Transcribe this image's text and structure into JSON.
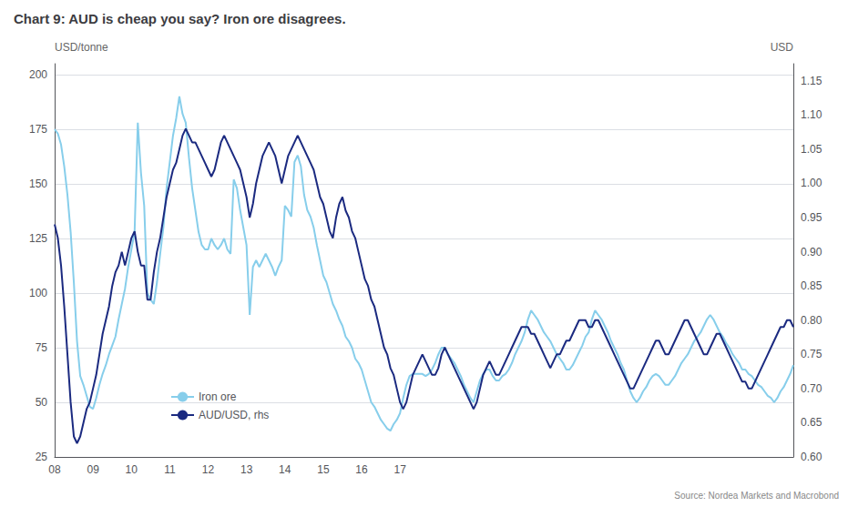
{
  "chart_data": {
    "type": "line",
    "title": "Chart 9: AUD is cheap you say? Iron ore disagrees.",
    "source": "Source: Nordea Markets and Macrobond",
    "ylabel": "USD/tonne",
    "y2label": "USD",
    "categories": [
      "08",
      null,
      null,
      null,
      null,
      null,
      null,
      null,
      null,
      null,
      null,
      null,
      "09",
      null,
      null,
      null,
      null,
      null,
      null,
      null,
      null,
      null,
      null,
      null,
      "10",
      null,
      null,
      null,
      null,
      null,
      null,
      null,
      null,
      null,
      null,
      null,
      "11",
      null,
      null,
      null,
      null,
      null,
      null,
      null,
      null,
      null,
      null,
      null,
      "12",
      null,
      null,
      null,
      null,
      null,
      null,
      null,
      null,
      null,
      null,
      null,
      "13",
      null,
      null,
      null,
      null,
      null,
      null,
      null,
      null,
      null,
      null,
      null,
      "14",
      null,
      null,
      null,
      null,
      null,
      null,
      null,
      null,
      null,
      null,
      null,
      "15",
      null,
      null,
      null,
      null,
      null,
      null,
      null,
      null,
      null,
      null,
      null,
      "16",
      null,
      null,
      null,
      null,
      null,
      null,
      null,
      null,
      null,
      null,
      null,
      "17",
      null,
      null,
      null,
      null,
      null,
      null,
      null,
      null,
      null,
      null,
      null,
      null,
      null,
      null,
      null,
      null,
      null,
      null,
      null,
      null,
      null,
      null,
      null,
      null,
      null,
      null,
      null,
      null,
      null,
      null,
      null,
      null,
      null,
      null,
      null,
      null,
      null,
      null,
      null,
      null,
      null,
      null,
      null,
      null,
      null,
      null,
      null,
      null,
      null,
      null,
      null,
      null,
      null,
      null,
      null,
      null,
      null,
      null,
      null,
      null,
      null,
      null,
      null,
      null,
      null,
      null,
      null,
      null,
      null,
      null,
      null,
      null,
      null,
      null,
      null,
      null,
      null,
      null,
      null,
      null,
      null,
      null,
      null,
      null,
      null,
      null,
      null,
      null,
      null,
      null,
      null,
      null,
      null,
      null,
      null,
      null,
      null,
      null,
      null,
      null,
      null,
      null,
      null,
      null,
      null,
      null,
      null,
      null,
      null,
      null,
      null,
      null,
      null,
      null,
      null,
      null,
      null,
      null,
      null,
      null,
      null,
      null,
      null
    ],
    "ylim": [
      25,
      205
    ],
    "yticks": [
      25,
      50,
      75,
      100,
      125,
      150,
      175,
      200
    ],
    "y2lim": [
      0.6,
      1.175
    ],
    "y2ticks": [
      {
        "value": 0.6,
        "label": "0.60"
      },
      {
        "value": 0.65,
        "label": "0.65"
      },
      {
        "value": 0.7,
        "label": "0.70"
      },
      {
        "value": 0.75,
        "label": "0.75"
      },
      {
        "value": 0.8,
        "label": "0.80"
      },
      {
        "value": 0.85,
        "label": "0.85"
      },
      {
        "value": 0.9,
        "label": "0.90"
      },
      {
        "value": 0.95,
        "label": "0.95"
      },
      {
        "value": 1.0,
        "label": "1.00"
      },
      {
        "value": 1.05,
        "label": "1.05"
      },
      {
        "value": 1.1,
        "label": "1.10"
      },
      {
        "value": 1.15,
        "label": "1.15"
      }
    ],
    "grid": true,
    "legend": "lower left",
    "series": [
      {
        "name": "Iron ore",
        "color": "#87CEEB",
        "values": [
          175,
          173,
          168,
          158,
          145,
          128,
          105,
          78,
          62,
          58,
          53,
          48,
          47,
          52,
          58,
          63,
          67,
          72,
          76,
          80,
          88,
          95,
          102,
          112,
          120,
          128,
          178,
          155,
          140,
          100,
          97,
          95,
          105,
          118,
          130,
          148,
          160,
          172,
          180,
          190,
          182,
          178,
          162,
          148,
          138,
          128,
          122,
          120,
          120,
          125,
          122,
          120,
          122,
          125,
          120,
          118,
          152,
          148,
          138,
          130,
          122,
          90,
          112,
          115,
          112,
          115,
          118,
          115,
          112,
          108,
          112,
          115,
          140,
          138,
          135,
          160,
          163,
          158,
          145,
          138,
          135,
          130,
          122,
          115,
          108,
          105,
          100,
          95,
          92,
          88,
          85,
          80,
          78,
          75,
          70,
          68,
          65,
          60,
          55,
          50,
          48,
          45,
          42,
          40,
          38,
          37,
          40,
          42,
          45,
          52,
          58,
          62,
          63,
          63,
          63,
          63,
          62,
          63,
          65,
          68,
          72,
          75,
          75,
          72,
          70,
          68,
          65,
          62,
          58,
          55,
          52,
          50,
          55,
          60,
          63,
          65,
          65,
          62,
          60,
          60,
          62,
          63,
          65,
          68,
          72,
          75,
          78,
          82,
          88,
          92,
          90,
          88,
          85,
          82,
          80,
          78,
          75,
          72,
          70,
          68,
          65,
          65,
          67,
          70,
          73,
          76,
          80,
          82,
          88,
          92,
          90,
          88,
          85,
          82,
          78,
          75,
          72,
          68,
          65,
          60,
          55,
          52,
          50,
          52,
          55,
          57,
          60,
          62,
          63,
          62,
          60,
          58,
          58,
          60,
          62,
          65,
          68,
          70,
          72,
          75,
          78,
          80,
          82,
          85,
          88,
          90,
          88,
          85,
          82,
          80,
          77,
          75,
          72,
          70,
          68,
          65,
          65,
          63,
          62,
          60,
          58,
          57,
          55,
          53,
          52,
          50,
          52,
          55,
          57,
          60,
          63,
          67
        ]
      },
      {
        "name": "AUD/USD, rhs",
        "color": "#1B2A80",
        "axis": "y2",
        "values": [
          0.94,
          0.92,
          0.88,
          0.82,
          0.75,
          0.68,
          0.63,
          0.62,
          0.63,
          0.65,
          0.67,
          0.68,
          0.7,
          0.72,
          0.75,
          0.78,
          0.8,
          0.82,
          0.85,
          0.87,
          0.88,
          0.9,
          0.88,
          0.9,
          0.92,
          0.93,
          0.9,
          0.88,
          0.88,
          0.83,
          0.83,
          0.87,
          0.9,
          0.92,
          0.95,
          0.98,
          1.0,
          1.02,
          1.03,
          1.05,
          1.07,
          1.08,
          1.07,
          1.06,
          1.06,
          1.05,
          1.04,
          1.03,
          1.02,
          1.01,
          1.02,
          1.04,
          1.06,
          1.07,
          1.06,
          1.05,
          1.04,
          1.03,
          1.02,
          1.0,
          0.98,
          0.95,
          0.97,
          1.0,
          1.02,
          1.04,
          1.05,
          1.06,
          1.05,
          1.04,
          1.02,
          1.0,
          1.02,
          1.04,
          1.05,
          1.06,
          1.07,
          1.06,
          1.05,
          1.04,
          1.03,
          1.02,
          1.0,
          0.98,
          0.97,
          0.95,
          0.93,
          0.92,
          0.95,
          0.97,
          0.98,
          0.96,
          0.95,
          0.93,
          0.92,
          0.9,
          0.88,
          0.86,
          0.85,
          0.83,
          0.82,
          0.8,
          0.78,
          0.76,
          0.75,
          0.73,
          0.72,
          0.7,
          0.68,
          0.67,
          0.68,
          0.7,
          0.72,
          0.73,
          0.74,
          0.75,
          0.74,
          0.73,
          0.72,
          0.72,
          0.73,
          0.75,
          0.76,
          0.75,
          0.74,
          0.73,
          0.72,
          0.71,
          0.7,
          0.69,
          0.68,
          0.67,
          0.68,
          0.7,
          0.72,
          0.73,
          0.74,
          0.73,
          0.72,
          0.72,
          0.73,
          0.74,
          0.75,
          0.76,
          0.77,
          0.78,
          0.79,
          0.79,
          0.79,
          0.78,
          0.78,
          0.77,
          0.76,
          0.75,
          0.74,
          0.73,
          0.74,
          0.75,
          0.75,
          0.76,
          0.77,
          0.77,
          0.78,
          0.79,
          0.8,
          0.8,
          0.8,
          0.79,
          0.79,
          0.8,
          0.8,
          0.79,
          0.78,
          0.77,
          0.76,
          0.75,
          0.74,
          0.73,
          0.72,
          0.71,
          0.7,
          0.7,
          0.71,
          0.72,
          0.73,
          0.74,
          0.75,
          0.76,
          0.77,
          0.77,
          0.76,
          0.75,
          0.75,
          0.76,
          0.77,
          0.78,
          0.79,
          0.8,
          0.8,
          0.79,
          0.78,
          0.77,
          0.76,
          0.75,
          0.75,
          0.76,
          0.77,
          0.78,
          0.78,
          0.77,
          0.76,
          0.75,
          0.74,
          0.73,
          0.72,
          0.71,
          0.71,
          0.7,
          0.7,
          0.71,
          0.72,
          0.73,
          0.74,
          0.75,
          0.76,
          0.77,
          0.78,
          0.79,
          0.79,
          0.8,
          0.8,
          0.79
        ]
      }
    ]
  }
}
